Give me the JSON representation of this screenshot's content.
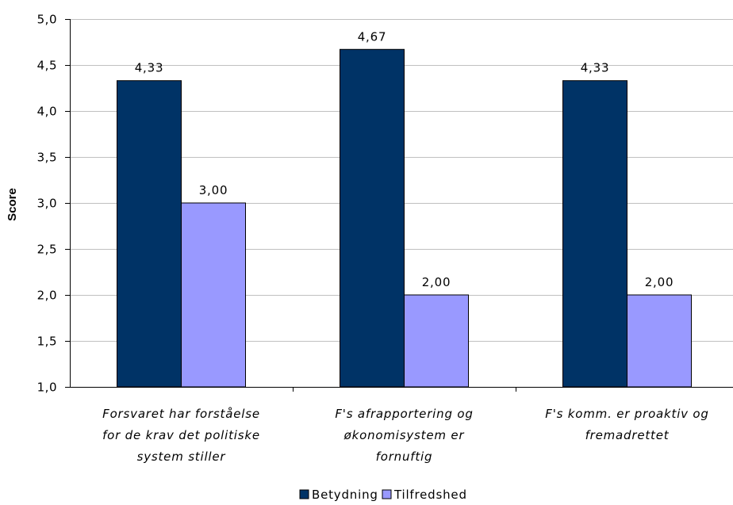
{
  "chart_data": {
    "type": "bar",
    "ylabel": "Score",
    "ylim": [
      1.0,
      5.0
    ],
    "yticks": [
      "1,0",
      "1,5",
      "2,0",
      "2,5",
      "3,0",
      "3,5",
      "4,0",
      "4,5",
      "5,0"
    ],
    "ytick_values": [
      1.0,
      1.5,
      2.0,
      2.5,
      3.0,
      3.5,
      4.0,
      4.5,
      5.0
    ],
    "grid": true,
    "legend_position": "bottom",
    "categories": [
      [
        "Forsvaret har forståelse",
        "for de krav det politiske",
        "system stiller"
      ],
      [
        "F's afrapportering og",
        "økonomisystem er",
        "fornuftig"
      ],
      [
        "F's komm. er proaktiv og",
        "fremadrettet"
      ]
    ],
    "series": [
      {
        "name": "Betydning",
        "color": "#003366",
        "values": [
          4.33,
          4.67,
          4.33
        ],
        "labels": [
          "4,33",
          "4,67",
          "4,33"
        ]
      },
      {
        "name": "Tilfredshed",
        "color": "#9999ff",
        "values": [
          3.0,
          2.0,
          2.0
        ],
        "labels": [
          "3,00",
          "2,00",
          "2,00"
        ]
      }
    ]
  }
}
